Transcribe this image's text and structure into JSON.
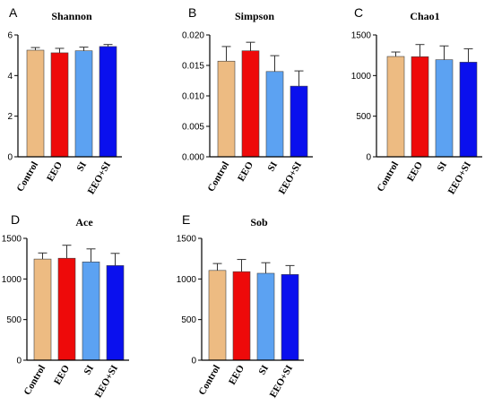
{
  "colors": {
    "Control": "#EDBB82",
    "EEO": "#EE0A0A",
    "SI": "#5CA2F2",
    "EEO+SI": "#0A10EE",
    "axis": "#000000",
    "errorbar": "#333333"
  },
  "chart_data": [
    {
      "letter": "A",
      "type": "bar",
      "title": "Shannon",
      "xlabel": "",
      "ylabel": "",
      "categories": [
        "Control",
        "EEO",
        "SI",
        "EEO+SI"
      ],
      "values": [
        5.25,
        5.12,
        5.22,
        5.43
      ],
      "errors": [
        0.13,
        0.22,
        0.18,
        0.1
      ],
      "ylim": [
        0,
        6
      ],
      "yticks": [
        0,
        2,
        4,
        6
      ],
      "ytick_labels": [
        "0",
        "2",
        "4",
        "6"
      ],
      "grid": false,
      "legend": "none"
    },
    {
      "letter": "B",
      "type": "bar",
      "title": "Simpson",
      "xlabel": "",
      "ylabel": "",
      "categories": [
        "Control",
        "EEO",
        "SI",
        "EEO+SI"
      ],
      "values": [
        0.0157,
        0.0174,
        0.014,
        0.0116
      ],
      "errors": [
        0.0024,
        0.0014,
        0.0026,
        0.0025
      ],
      "ylim": [
        0,
        0.02
      ],
      "yticks": [
        0,
        0.005,
        0.01,
        0.015,
        0.02
      ],
      "ytick_labels": [
        "0.000",
        "0.005",
        "0.010",
        "0.015",
        "0.020"
      ],
      "grid": false,
      "legend": "none"
    },
    {
      "letter": "C",
      "type": "bar",
      "title": "Chao1",
      "xlabel": "",
      "ylabel": "",
      "categories": [
        "Control",
        "EEO",
        "SI",
        "EEO+SI"
      ],
      "values": [
        1235,
        1232,
        1195,
        1165
      ],
      "errors": [
        55,
        150,
        170,
        165
      ],
      "ylim": [
        0,
        1500
      ],
      "yticks": [
        0,
        500,
        1000,
        1500
      ],
      "ytick_labels": [
        "0",
        "500",
        "1000",
        "1500"
      ],
      "grid": false,
      "legend": "none"
    },
    {
      "letter": "D",
      "type": "bar",
      "title": "Ace",
      "xlabel": "",
      "ylabel": "",
      "categories": [
        "Control",
        "EEO",
        "SI",
        "EEO+SI"
      ],
      "values": [
        1245,
        1255,
        1210,
        1165
      ],
      "errors": [
        75,
        160,
        160,
        150
      ],
      "ylim": [
        0,
        1500
      ],
      "yticks": [
        0,
        500,
        1000,
        1500
      ],
      "ytick_labels": [
        "0",
        "500",
        "1000",
        "1500"
      ],
      "grid": false,
      "legend": "none"
    },
    {
      "letter": "E",
      "type": "bar",
      "title": "Sob",
      "xlabel": "",
      "ylabel": "",
      "categories": [
        "Control",
        "EEO",
        "SI",
        "EEO+SI"
      ],
      "values": [
        1105,
        1090,
        1070,
        1055
      ],
      "errors": [
        85,
        150,
        130,
        110
      ],
      "ylim": [
        0,
        1500
      ],
      "yticks": [
        0,
        500,
        1000,
        1500
      ],
      "ytick_labels": [
        "0",
        "500",
        "1000",
        "1500"
      ],
      "grid": false,
      "legend": "none"
    }
  ]
}
